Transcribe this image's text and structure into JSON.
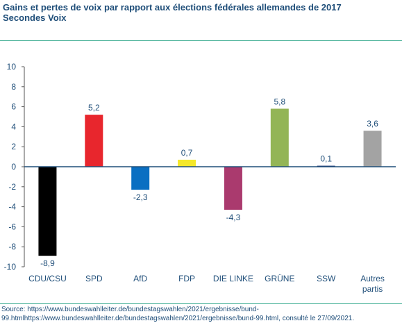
{
  "header": {
    "title_line1": "Gains et pertes de voix par rapport aux élections fédérales allemandes de 2017",
    "title_line2": "Secondes Voix"
  },
  "footer": {
    "source_line1": "Source: https://www.bundeswahlleiter.de/bundestagswahlen/2021/ergebnisse/bund-",
    "source_line2": "99.htmlhttps://www.bundeswahlleiter.de/bundestagswahlen/2021/ergebnisse/bund-99.html, consulté le 27/09/2021."
  },
  "chart_data": {
    "type": "bar",
    "categories": [
      "CDU/CSU",
      "SPD",
      "AfD",
      "FDP",
      "DIE LINKE",
      "GRÜNE",
      "SSW",
      "Autres partis"
    ],
    "values": [
      -8.9,
      5.2,
      -2.3,
      0.7,
      -4.3,
      5.8,
      0.1,
      3.6
    ],
    "value_labels": [
      "-8,9",
      "5,2",
      "-2,3",
      "0,7",
      "-4,3",
      "5,8",
      "0,1",
      "3,6"
    ],
    "colors": [
      "#000000",
      "#e8262d",
      "#0a6fc2",
      "#f5e82a",
      "#aa3a6e",
      "#93b556",
      "#20387a",
      "#a3a3a3"
    ],
    "ylim": [
      -10,
      10
    ],
    "yticks": [
      -10,
      -8,
      -6,
      -4,
      -2,
      0,
      2,
      4,
      6,
      8,
      10
    ],
    "ytick_labels": [
      "-10",
      "-8",
      "-6",
      "-4",
      "-2",
      "0",
      "2",
      "4",
      "6",
      "8",
      "10"
    ],
    "grid": false,
    "zero_line_color": "#1f4e79"
  }
}
